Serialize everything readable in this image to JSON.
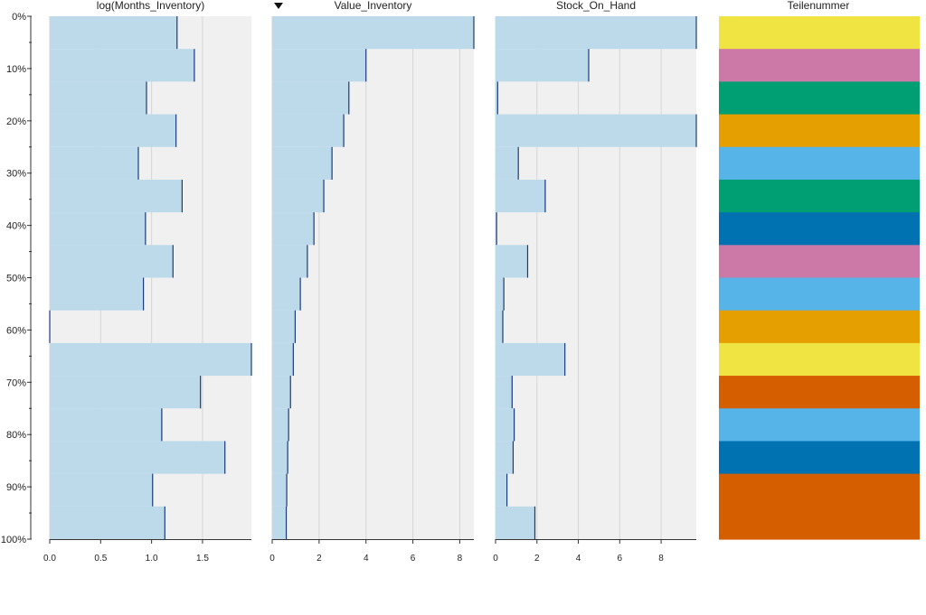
{
  "chart_data": {
    "type": "bar",
    "orientation": "horizontal",
    "rows": 16,
    "row_axis": {
      "ticks": [
        "0%",
        "10%",
        "20%",
        "30%",
        "40%",
        "50%",
        "60%",
        "70%",
        "80%",
        "90%",
        "100%"
      ]
    },
    "sort_column": "Value_Inventory",
    "sort_direction": "descending",
    "columns": [
      {
        "title": "log(Months_Inventory)",
        "xlim": [
          0,
          1.98
        ],
        "ticks": [
          "0.0",
          "0.5",
          "1.0",
          "1.5"
        ],
        "tick_values": [
          0,
          0.5,
          1.0,
          1.5
        ],
        "values": [
          1.25,
          1.42,
          0.95,
          1.24,
          0.87,
          1.3,
          0.94,
          1.21,
          0.92,
          0.0,
          1.98,
          1.48,
          1.1,
          1.72,
          1.01,
          1.13
        ]
      },
      {
        "title": "Value_Inventory",
        "xlim": [
          0,
          8.6
        ],
        "ticks": [
          "0",
          "2",
          "4",
          "6",
          "8"
        ],
        "tick_values": [
          0,
          2,
          4,
          6,
          8
        ],
        "values": [
          8.6,
          4.0,
          3.27,
          3.05,
          2.55,
          2.2,
          1.78,
          1.5,
          1.2,
          0.98,
          0.9,
          0.78,
          0.7,
          0.66,
          0.62,
          0.6
        ]
      },
      {
        "title": "Stock_On_Hand",
        "xlim": [
          0,
          9.7
        ],
        "ticks": [
          "0",
          "2",
          "4",
          "6",
          "8"
        ],
        "tick_values": [
          0,
          2,
          4,
          6,
          8
        ],
        "values": [
          9.7,
          4.5,
          0.1,
          9.7,
          1.1,
          2.4,
          0.05,
          1.55,
          0.4,
          0.35,
          3.35,
          0.8,
          0.9,
          0.85,
          0.55,
          1.9
        ]
      }
    ],
    "category_column": {
      "title": "Teilenummer",
      "colors": [
        "#f0e442",
        "#cc79a7",
        "#009e73",
        "#e69f00",
        "#56b4e9",
        "#009e73",
        "#0072b2",
        "#cc79a7",
        "#56b4e9",
        "#e69f00",
        "#f0e442",
        "#d55e00",
        "#56b4e9",
        "#0072b2",
        "#d55e00",
        "#d55e00"
      ]
    },
    "style": {
      "bar_color": "#bddaeb",
      "bar_edge_color": "#1a3a7a",
      "panel_bg": "#f0f0f0",
      "grid_color": "#d6d6d6"
    }
  }
}
